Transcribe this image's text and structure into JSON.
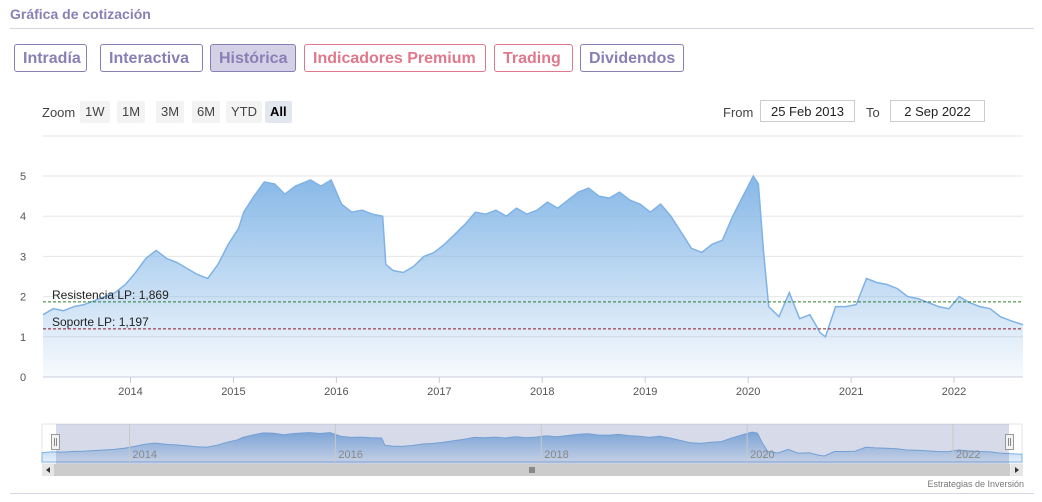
{
  "header": {
    "title": "Gráfica de cotización"
  },
  "tabs": [
    {
      "label": "Intradía",
      "active": false,
      "style": "purple"
    },
    {
      "label": "Interactiva",
      "active": false,
      "style": "purple"
    },
    {
      "label": "Histórica",
      "active": true,
      "style": "purple"
    },
    {
      "label": "Indicadores Premium",
      "active": false,
      "style": "pink"
    },
    {
      "label": "Trading",
      "active": false,
      "style": "pink"
    },
    {
      "label": "Dividendos",
      "active": false,
      "style": "purple"
    }
  ],
  "zoom": {
    "label": "Zoom",
    "buttons": [
      "1W",
      "1M",
      "3M",
      "6M",
      "YTD",
      "All"
    ],
    "selected": "All"
  },
  "range": {
    "from_label": "From",
    "from_value": "25 Feb 2013",
    "to_label": "To",
    "to_value": "2 Sep 2022"
  },
  "credit": "Estrategias de Inversión",
  "colors": {
    "accent": "#8a7fb5",
    "pink": "#e0788c",
    "line": "#7fb2e5",
    "fill_top": "#80b4e6",
    "resistance": "#2e7d32",
    "support": "#8b1c2c"
  },
  "chart_data": {
    "type": "area",
    "title": "",
    "xlabel": "",
    "ylabel": "",
    "xlim": [
      2013.15,
      2022.67
    ],
    "ylim": [
      0,
      5
    ],
    "yticks": [
      0,
      1,
      2,
      3,
      4,
      5
    ],
    "xticks": [
      "2014",
      "2015",
      "2016",
      "2017",
      "2018",
      "2019",
      "2020",
      "2021",
      "2022"
    ],
    "navigator_ticks": [
      "2014",
      "2016",
      "2018",
      "2020",
      "2022"
    ],
    "grid": true,
    "annotations": [
      {
        "label": "Resistencia LP: 1,869",
        "value": 1.869,
        "style": "dashed",
        "color": "#2e7d32"
      },
      {
        "label": "Soporte LP: 1,197",
        "value": 1.197,
        "style": "dashed",
        "color": "#8b1c2c"
      }
    ],
    "series": [
      {
        "x": [
          2013.15,
          2013.25,
          2013.35,
          2013.45,
          2013.55,
          2013.65,
          2013.75,
          2013.85,
          2013.95,
          2014.05,
          2014.15,
          2014.25,
          2014.35,
          2014.45,
          2014.55,
          2014.65,
          2014.75,
          2014.85,
          2014.95,
          2015.05,
          2015.1,
          2015.2,
          2015.3,
          2015.4,
          2015.5,
          2015.6,
          2015.7,
          2015.75,
          2015.85,
          2015.95,
          2016.05,
          2016.15,
          2016.25,
          2016.35,
          2016.45,
          2016.48,
          2016.55,
          2016.65,
          2016.75,
          2016.85,
          2016.95,
          2017.05,
          2017.15,
          2017.25,
          2017.35,
          2017.45,
          2017.55,
          2017.65,
          2017.75,
          2017.85,
          2017.95,
          2018.05,
          2018.15,
          2018.25,
          2018.35,
          2018.45,
          2018.55,
          2018.65,
          2018.75,
          2018.85,
          2018.95,
          2019.05,
          2019.15,
          2019.25,
          2019.35,
          2019.45,
          2019.55,
          2019.65,
          2019.75,
          2019.85,
          2019.95,
          2020.05,
          2020.1,
          2020.15,
          2020.2,
          2020.3,
          2020.4,
          2020.5,
          2020.6,
          2020.7,
          2020.75,
          2020.85,
          2020.95,
          2021.05,
          2021.15,
          2021.25,
          2021.35,
          2021.45,
          2021.55,
          2021.65,
          2021.75,
          2021.85,
          2021.95,
          2022.05,
          2022.15,
          2022.25,
          2022.35,
          2022.45,
          2022.55,
          2022.67
        ],
        "y": [
          1.55,
          1.7,
          1.65,
          1.75,
          1.8,
          1.9,
          2.0,
          2.1,
          2.3,
          2.6,
          2.95,
          3.15,
          2.95,
          2.85,
          2.7,
          2.55,
          2.45,
          2.8,
          3.3,
          3.7,
          4.1,
          4.5,
          4.85,
          4.8,
          4.55,
          4.75,
          4.85,
          4.9,
          4.75,
          4.9,
          4.3,
          4.1,
          4.15,
          4.05,
          4.0,
          2.8,
          2.65,
          2.6,
          2.75,
          3.0,
          3.1,
          3.3,
          3.55,
          3.8,
          4.1,
          4.05,
          4.15,
          4.0,
          4.2,
          4.05,
          4.15,
          4.35,
          4.2,
          4.4,
          4.6,
          4.7,
          4.5,
          4.45,
          4.6,
          4.4,
          4.3,
          4.1,
          4.3,
          4.0,
          3.6,
          3.2,
          3.1,
          3.3,
          3.4,
          4.0,
          4.5,
          5.0,
          4.8,
          3.1,
          1.75,
          1.5,
          2.1,
          1.45,
          1.55,
          1.1,
          1.0,
          1.75,
          1.75,
          1.8,
          2.45,
          2.35,
          2.3,
          2.2,
          2.0,
          1.95,
          1.85,
          1.75,
          1.7,
          2.0,
          1.85,
          1.75,
          1.7,
          1.5,
          1.4,
          1.3
        ]
      }
    ]
  }
}
